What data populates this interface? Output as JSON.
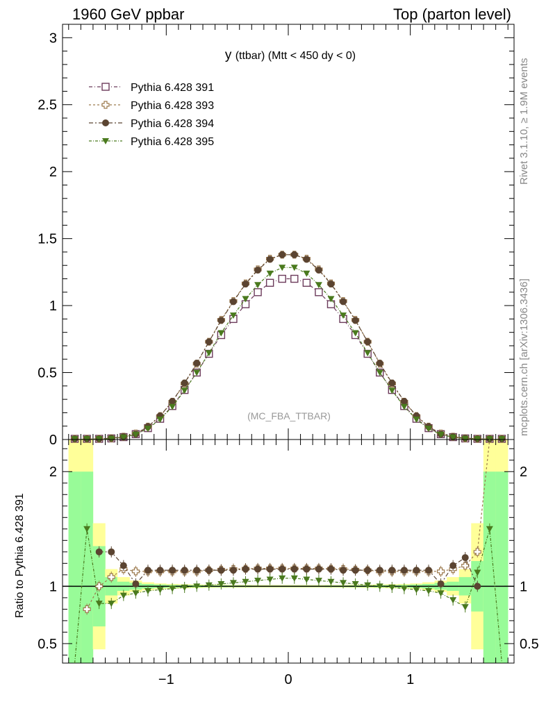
{
  "header": {
    "left": "1960 GeV ppbar",
    "right": "Top (parton level)"
  },
  "side": {
    "rivet": "Rivet 3.1.10, ≥ 1.9M events",
    "source": "mcplots.cern.ch [arXiv:1306.3436]"
  },
  "chart_data": [
    {
      "type": "line",
      "title_main": "y",
      "title_rest": "(ttbar) (Mtt < 450 dy < 0)",
      "watermark": "(MC_FBA_TTBAR)",
      "xlim": [
        -1.85,
        1.85
      ],
      "ylim": [
        0,
        3.1
      ],
      "x_ticks": [
        "−1",
        "0",
        "1"
      ],
      "y_ticks": [
        "0",
        "0.5",
        "1",
        "1.5",
        "2",
        "2.5",
        "3"
      ],
      "legend_position": "top-left",
      "x": [
        -1.75,
        -1.65,
        -1.55,
        -1.45,
        -1.35,
        -1.25,
        -1.15,
        -1.05,
        -0.95,
        -0.85,
        -0.75,
        -0.65,
        -0.55,
        -0.45,
        -0.35,
        -0.25,
        -0.15,
        -0.05,
        0.05,
        0.15,
        0.25,
        0.35,
        0.45,
        0.55,
        0.65,
        0.75,
        0.85,
        0.95,
        1.05,
        1.15,
        1.25,
        1.35,
        1.45,
        1.55,
        1.65,
        1.75
      ],
      "series": [
        {
          "name": "Pythia 6.428 391",
          "color": "#6b3a5a",
          "marker": "open-square",
          "values": [
            0.001,
            0.002,
            0.004,
            0.008,
            0.018,
            0.04,
            0.085,
            0.155,
            0.25,
            0.37,
            0.5,
            0.64,
            0.78,
            0.9,
            1.01,
            1.1,
            1.17,
            1.2,
            1.2,
            1.17,
            1.1,
            1.01,
            0.9,
            0.78,
            0.64,
            0.5,
            0.37,
            0.25,
            0.155,
            0.085,
            0.04,
            0.018,
            0.008,
            0.004,
            0.002,
            0.001
          ]
        },
        {
          "name": "Pythia 6.428 393",
          "color": "#9c7a4e",
          "marker": "open-cross",
          "values": [
            0.0008,
            0.0016,
            0.0052,
            0.0092,
            0.021,
            0.045,
            0.096,
            0.175,
            0.282,
            0.418,
            0.566,
            0.73,
            0.893,
            1.034,
            1.165,
            1.27,
            1.35,
            1.38,
            1.38,
            1.35,
            1.27,
            1.165,
            1.034,
            0.893,
            0.73,
            0.566,
            0.418,
            0.282,
            0.175,
            0.096,
            0.045,
            0.021,
            0.0092,
            0.0052,
            0.0016,
            0.0008
          ]
        },
        {
          "name": "Pythia 6.428 394",
          "color": "#5b4431",
          "marker": "filled-circle",
          "values": [
            0.0007,
            0.0016,
            0.0052,
            0.0104,
            0.0213,
            0.0408,
            0.0969,
            0.1767,
            0.285,
            0.4218,
            0.57,
            0.7296,
            0.8892,
            1.0296,
            1.1615,
            1.265,
            1.3455,
            1.38,
            1.38,
            1.3455,
            1.265,
            1.1615,
            1.0296,
            0.8892,
            0.7296,
            0.57,
            0.4218,
            0.285,
            0.1767,
            0.0969,
            0.0408,
            0.0213,
            0.0104,
            0.0052,
            0.0016,
            0.0007
          ]
        },
        {
          "name": "Pythia 6.428 395",
          "color": "#4a7a1e",
          "marker": "filled-triangle-down",
          "values": [
            0.0003,
            0.003,
            0.0034,
            0.0068,
            0.0166,
            0.0376,
            0.0816,
            0.1504,
            0.245,
            0.3663,
            0.5,
            0.6464,
            0.7956,
            0.927,
            1.0504,
            1.155,
            1.2402,
            1.284,
            1.284,
            1.2402,
            1.155,
            1.0504,
            0.927,
            0.7956,
            0.6464,
            0.5,
            0.3663,
            0.245,
            0.1504,
            0.0816,
            0.0376,
            0.0166,
            0.0068,
            0.0034,
            0.003,
            0.0003
          ]
        }
      ]
    },
    {
      "type": "line",
      "ylabel": "Ratio to Pythia 6.428 391",
      "xlim": [
        -1.85,
        1.85
      ],
      "ylim": [
        0.33,
        2.28
      ],
      "x_ticks": [
        "−1",
        "0",
        "1"
      ],
      "y_ticks": [
        "0.5",
        "1",
        "2"
      ],
      "band_inner_color": "#98fb98",
      "band_outer_color": "#ffff99",
      "band_inner_halfwidth": [
        1.0,
        1.0,
        0.35,
        0.08,
        0.04,
        0.03,
        0.02,
        0.015,
        0.012,
        0.01,
        0.01,
        0.008,
        0.008,
        0.007,
        0.007,
        0.006,
        0.006,
        0.006,
        0.006,
        0.006,
        0.006,
        0.007,
        0.007,
        0.008,
        0.008,
        0.01,
        0.01,
        0.012,
        0.015,
        0.02,
        0.03,
        0.04,
        0.08,
        0.22,
        1.0,
        1.0
      ],
      "band_outer_halfwidth": [
        1.5,
        1.5,
        0.55,
        0.15,
        0.08,
        0.05,
        0.035,
        0.025,
        0.02,
        0.018,
        0.016,
        0.014,
        0.013,
        0.012,
        0.012,
        0.011,
        0.011,
        0.011,
        0.011,
        0.011,
        0.011,
        0.012,
        0.012,
        0.013,
        0.014,
        0.016,
        0.018,
        0.02,
        0.025,
        0.035,
        0.05,
        0.08,
        0.15,
        0.55,
        1.5,
        1.5
      ],
      "series": [
        {
          "name": "Pythia 6.428 393",
          "color": "#9c7a4e",
          "marker": "open-cross",
          "values": [
            null,
            0.8,
            1.0,
            1.08,
            1.15,
            1.13,
            1.13,
            1.13,
            1.13,
            1.13,
            1.13,
            1.14,
            1.145,
            1.15,
            1.153,
            1.155,
            1.155,
            1.155,
            1.155,
            1.155,
            1.155,
            1.153,
            1.15,
            1.145,
            1.14,
            1.13,
            1.13,
            1.13,
            1.13,
            1.13,
            1.13,
            1.15,
            1.18,
            1.3,
            2.3,
            null
          ]
        },
        {
          "name": "Pythia 6.428 394",
          "color": "#5b4431",
          "marker": "filled-circle",
          "values": [
            null,
            null,
            1.3,
            1.3,
            1.18,
            1.02,
            1.14,
            1.14,
            1.14,
            1.14,
            1.14,
            1.14,
            1.14,
            1.14,
            1.15,
            1.15,
            1.15,
            1.15,
            1.15,
            1.15,
            1.15,
            1.15,
            1.14,
            1.14,
            1.14,
            1.14,
            1.14,
            1.14,
            1.14,
            1.14,
            1.02,
            1.18,
            1.25,
            1.0,
            null,
            null
          ]
        },
        {
          "name": "Pythia 6.428 395",
          "color": "#4a7a1e",
          "marker": "filled-triangle-down",
          "values": [
            0.3,
            1.5,
            0.85,
            0.85,
            0.92,
            0.94,
            0.96,
            0.97,
            0.98,
            0.99,
            1.0,
            1.01,
            1.02,
            1.03,
            1.04,
            1.05,
            1.06,
            1.07,
            1.07,
            1.06,
            1.05,
            1.04,
            1.03,
            1.02,
            1.01,
            1.0,
            0.99,
            0.98,
            0.97,
            0.96,
            0.94,
            0.88,
            0.82,
            1.12,
            1.5,
            0.3
          ]
        }
      ]
    }
  ]
}
